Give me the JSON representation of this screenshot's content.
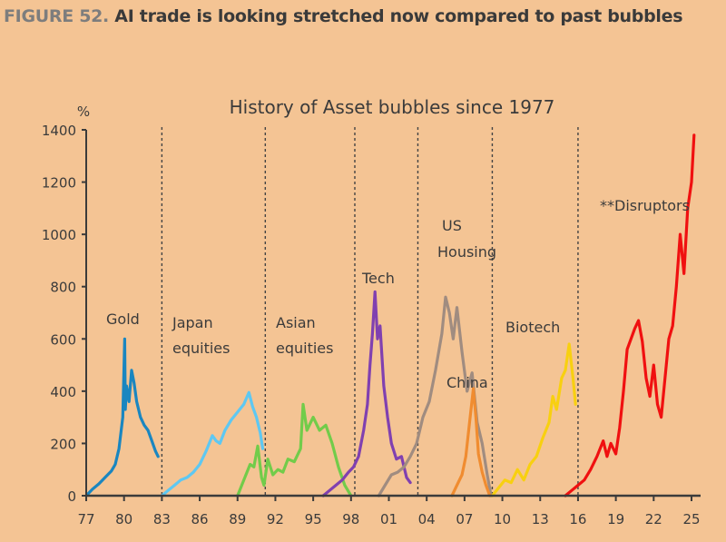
{
  "header": {
    "figure_number": "FIGURE 52.",
    "title": "AI trade is looking stretched now compared to past bubbles"
  },
  "chart_data": {
    "type": "line",
    "title": "History of Asset bubbles since 1977",
    "ylabel": "%",
    "xlabel": "",
    "ylim": [
      0,
      1400
    ],
    "xlim": [
      1977,
      2025
    ],
    "yticks": [
      0,
      200,
      400,
      600,
      800,
      1000,
      1200,
      1400
    ],
    "xticks": [
      {
        "value": 1977,
        "label": "77"
      },
      {
        "value": 1980,
        "label": "80"
      },
      {
        "value": 1983,
        "label": "83"
      },
      {
        "value": 1986,
        "label": "86"
      },
      {
        "value": 1989,
        "label": "89"
      },
      {
        "value": 1992,
        "label": "92"
      },
      {
        "value": 1995,
        "label": "95"
      },
      {
        "value": 1998,
        "label": "98"
      },
      {
        "value": 2001,
        "label": "01"
      },
      {
        "value": 2004,
        "label": "04"
      },
      {
        "value": 2007,
        "label": "07"
      },
      {
        "value": 2010,
        "label": "10"
      },
      {
        "value": 2013,
        "label": "13"
      },
      {
        "value": 2016,
        "label": "16"
      },
      {
        "value": 2019,
        "label": "19"
      },
      {
        "value": 2022,
        "label": "22"
      },
      {
        "value": 2025,
        "label": "25"
      }
    ],
    "dividers": [
      1983,
      1991.2,
      1998.3,
      2003.3,
      2009.2,
      2016
    ],
    "grid": false,
    "series": [
      {
        "name": "Gold",
        "color": "#1a86c0",
        "x": [
          1977,
          1977.5,
          1978,
          1978.5,
          1979,
          1979.3,
          1979.6,
          1979.9,
          1980.05,
          1980.1,
          1980.2,
          1980.4,
          1980.6,
          1980.8,
          1981,
          1981.3,
          1981.6,
          1981.9,
          1982.2,
          1982.5,
          1982.7
        ],
        "y": [
          0,
          25,
          45,
          70,
          95,
          120,
          180,
          300,
          600,
          330,
          420,
          360,
          480,
          430,
          360,
          300,
          270,
          250,
          210,
          170,
          150
        ]
      },
      {
        "name": "Japan equities",
        "color": "#5ec8f2",
        "x": [
          1983,
          1983.5,
          1984,
          1984.5,
          1985,
          1985.5,
          1986,
          1986.5,
          1987,
          1987.3,
          1987.6,
          1988,
          1988.5,
          1989,
          1989.5,
          1989.9,
          1990.2,
          1990.5,
          1990.8,
          1991
        ],
        "y": [
          0,
          20,
          40,
          60,
          70,
          90,
          120,
          170,
          230,
          210,
          200,
          250,
          290,
          320,
          350,
          395,
          340,
          300,
          240,
          180
        ]
      },
      {
        "name": "Asian equities",
        "color": "#72cc4a",
        "x": [
          1989,
          1989.5,
          1990,
          1990.3,
          1990.6,
          1990.9,
          1991.1,
          1991.4,
          1991.8,
          1992.2,
          1992.6,
          1993,
          1993.5,
          1994,
          1994.2,
          1994.5,
          1995,
          1995.5,
          1996,
          1996.5,
          1997,
          1997.5,
          1998
        ],
        "y": [
          0,
          60,
          120,
          110,
          190,
          70,
          40,
          140,
          80,
          100,
          90,
          140,
          130,
          180,
          350,
          250,
          300,
          250,
          270,
          200,
          110,
          40,
          0
        ]
      },
      {
        "name": "Tech",
        "color": "#8040b0",
        "x": [
          1995.8,
          1996.3,
          1996.8,
          1997.3,
          1997.8,
          1998.2,
          1998.6,
          1999,
          1999.3,
          1999.5,
          1999.7,
          1999.9,
          2000.1,
          2000.3,
          2000.6,
          2000.9,
          2001.2,
          2001.6,
          2002,
          2002.4,
          2002.7
        ],
        "y": [
          0,
          20,
          40,
          60,
          90,
          110,
          150,
          250,
          350,
          500,
          620,
          780,
          600,
          650,
          420,
          300,
          200,
          140,
          150,
          70,
          50
        ]
      },
      {
        "name": "US Housing",
        "color": "#a08c80",
        "x": [
          2000.2,
          2000.7,
          2001.2,
          2001.7,
          2002.2,
          2002.7,
          2003.2,
          2003.7,
          2004.2,
          2004.7,
          2005.2,
          2005.5,
          2005.8,
          2006.1,
          2006.4,
          2006.8,
          2007.2,
          2007.6,
          2008,
          2008.4,
          2008.8,
          2009.1
        ],
        "y": [
          0,
          40,
          80,
          90,
          110,
          150,
          200,
          300,
          360,
          480,
          620,
          760,
          700,
          600,
          720,
          550,
          400,
          470,
          280,
          200,
          80,
          0
        ]
      },
      {
        "name": "China",
        "color": "#f08c30",
        "x": [
          2006,
          2006.4,
          2006.8,
          2007.1,
          2007.4,
          2007.7,
          2007.9,
          2008.1,
          2008.4,
          2008.7,
          2009
        ],
        "y": [
          0,
          40,
          80,
          150,
          280,
          410,
          300,
          160,
          90,
          40,
          0
        ]
      },
      {
        "name": "Biotech",
        "color": "#f8d010",
        "x": [
          2009.2,
          2009.7,
          2010.2,
          2010.7,
          2011.2,
          2011.7,
          2012.2,
          2012.7,
          2013.2,
          2013.7,
          2014,
          2014.3,
          2014.7,
          2015,
          2015.3,
          2015.6,
          2015.8
        ],
        "y": [
          0,
          30,
          60,
          50,
          100,
          60,
          120,
          150,
          220,
          280,
          380,
          330,
          450,
          480,
          580,
          450,
          350
        ]
      },
      {
        "name": "**Disruptors",
        "color": "#f01010",
        "x": [
          2015,
          2015.5,
          2016,
          2016.5,
          2017,
          2017.5,
          2018,
          2018.3,
          2018.6,
          2019,
          2019.3,
          2019.6,
          2019.9,
          2020.2,
          2020.5,
          2020.8,
          2021.1,
          2021.4,
          2021.7,
          2022,
          2022.3,
          2022.6,
          2022.9,
          2023.2,
          2023.5,
          2023.8,
          2024.1,
          2024.4,
          2024.7,
          2025,
          2025.2
        ],
        "y": [
          0,
          20,
          40,
          60,
          100,
          150,
          210,
          150,
          200,
          160,
          260,
          400,
          560,
          600,
          640,
          670,
          590,
          450,
          380,
          500,
          350,
          300,
          450,
          600,
          650,
          800,
          1000,
          850,
          1100,
          1200,
          1380
        ]
      }
    ],
    "annotations": [
      {
        "text": "Gold"
      },
      {
        "text": "Japan"
      },
      {
        "text": "equities"
      },
      {
        "text": "Asian"
      },
      {
        "text": "equities"
      },
      {
        "text": "Tech"
      },
      {
        "text": "US"
      },
      {
        "text": "Housing"
      },
      {
        "text": "China"
      },
      {
        "text": "Biotech"
      },
      {
        "text": "**Disruptors"
      }
    ]
  }
}
